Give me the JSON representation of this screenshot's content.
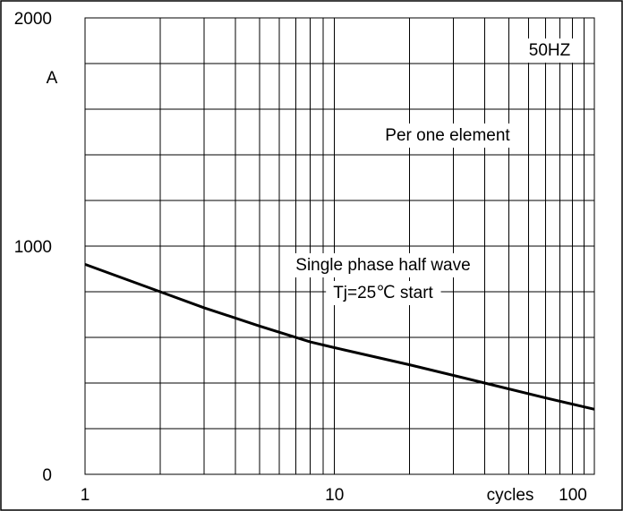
{
  "chart_data": {
    "type": "line",
    "title": "",
    "xlabel": "cycles",
    "ylabel": "A",
    "x_scale": "log",
    "xlim": [
      1,
      110
    ],
    "ylim": [
      0,
      2000
    ],
    "x_tick_labels": [
      "1",
      "10",
      "100"
    ],
    "y_tick_labels": [
      "0",
      "1000",
      "2000"
    ],
    "grid": true,
    "annotations": [
      "50HZ",
      "Per one element",
      "Single phase half wave",
      "Tj=25℃  start"
    ],
    "series": [
      {
        "x": [
          1,
          2,
          3,
          5,
          8,
          10,
          20,
          40,
          70,
          110
        ],
        "values": [
          920,
          800,
          730,
          650,
          580,
          555,
          480,
          400,
          335,
          285
        ]
      }
    ]
  }
}
